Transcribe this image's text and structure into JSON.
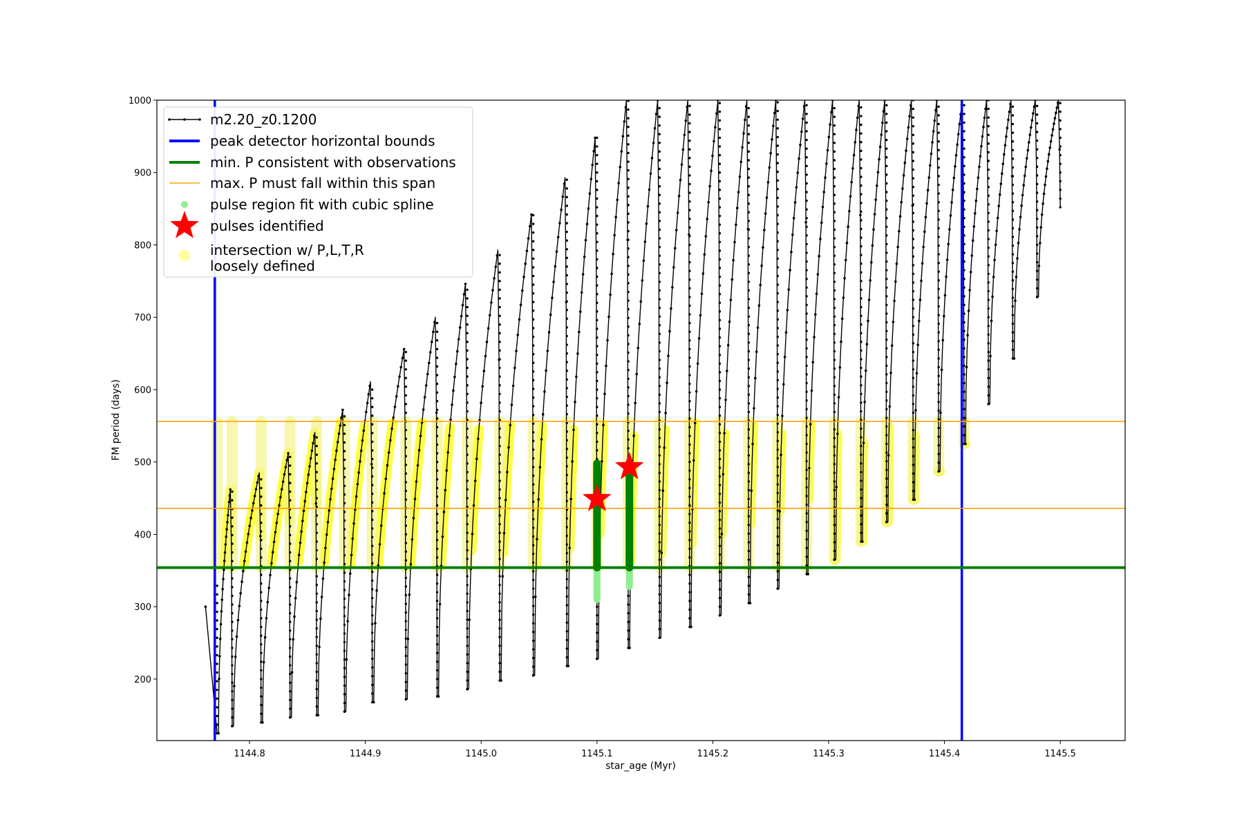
{
  "chart_data": {
    "type": "line",
    "xlabel": "star_age (Myr)",
    "ylabel": "FM period (days)",
    "xlim": [
      1144.72,
      1145.556
    ],
    "ylim": [
      115,
      1000
    ],
    "xticks": [
      1144.8,
      1144.9,
      1145.0,
      1145.1,
      1145.2,
      1145.3,
      1145.4,
      1145.5
    ],
    "xtick_labels": [
      "1144.8",
      "1144.9",
      "1145.0",
      "1145.1",
      "1145.2",
      "1145.3",
      "1145.4",
      "1145.5"
    ],
    "yticks": [
      200,
      300,
      400,
      500,
      600,
      700,
      800,
      900,
      1000
    ],
    "ytick_labels": [
      "200",
      "300",
      "400",
      "500",
      "600",
      "700",
      "800",
      "900",
      "1000"
    ],
    "grid": false,
    "legend_position": "top-left",
    "colors": {
      "track": "#000000",
      "bounds": "#0000ff",
      "min_p": "#008000",
      "max_p_span": "#ffa500",
      "spline": "#90ee90",
      "pulses": "#ff0000",
      "intersection": "#ffff00"
    },
    "legend": [
      {
        "label": "m2.20_z0.1200",
        "marker": "line-dots",
        "color": "#000000"
      },
      {
        "label": "peak detector horizontal bounds",
        "marker": "line",
        "color": "#0000ff"
      },
      {
        "label": "min. P consistent with observations",
        "marker": "line",
        "color": "#008000"
      },
      {
        "label": "max. P must fall within this span",
        "marker": "thin-line",
        "color": "#ffa500"
      },
      {
        "label": "pulse region fit with cubic spline",
        "marker": "dot",
        "color": "#90ee90"
      },
      {
        "label": "pulses identified",
        "marker": "star",
        "color": "#ff0000"
      },
      {
        "label": "intersection w/ P,L,T,R\nloosely defined",
        "marker": "big-dot",
        "color": "#ffff99"
      }
    ],
    "vertical_bounds_x": [
      1144.77,
      1145.415
    ],
    "min_period_y": 354,
    "max_period_span_y": [
      436,
      556
    ],
    "track_start": {
      "age": 1144.762,
      "period": 300
    },
    "pulses": [
      {
        "age": 1144.772,
        "peak": 335,
        "trough": 125
      },
      {
        "age": 1144.785,
        "peak": 462,
        "trough": 135
      },
      {
        "age": 1144.81,
        "peak": 485,
        "trough": 140
      },
      {
        "age": 1144.835,
        "peak": 512,
        "trough": 147
      },
      {
        "age": 1144.858,
        "peak": 541,
        "trough": 150
      },
      {
        "age": 1144.882,
        "peak": 572,
        "trough": 155
      },
      {
        "age": 1144.906,
        "peak": 611,
        "trough": 168
      },
      {
        "age": 1144.935,
        "peak": 656,
        "trough": 172
      },
      {
        "age": 1144.962,
        "peak": 700,
        "trough": 176
      },
      {
        "age": 1144.988,
        "peak": 746,
        "trough": 186
      },
      {
        "age": 1145.016,
        "peak": 793,
        "trough": 198
      },
      {
        "age": 1145.045,
        "peak": 842,
        "trough": 205
      },
      {
        "age": 1145.074,
        "peak": 893,
        "trough": 218
      },
      {
        "age": 1145.1,
        "peak": 948,
        "trough": 228
      },
      {
        "age": 1145.127,
        "peak": 1000,
        "trough": 243
      },
      {
        "age": 1145.154,
        "peak": 1000,
        "trough": 257
      },
      {
        "age": 1145.18,
        "peak": 1000,
        "trough": 272
      },
      {
        "age": 1145.206,
        "peak": 1000,
        "trough": 288
      },
      {
        "age": 1145.231,
        "peak": 1000,
        "trough": 305
      },
      {
        "age": 1145.256,
        "peak": 1000,
        "trough": 325
      },
      {
        "age": 1145.281,
        "peak": 1000,
        "trough": 345
      },
      {
        "age": 1145.305,
        "peak": 1000,
        "trough": 365
      },
      {
        "age": 1145.328,
        "peak": 1000,
        "trough": 390
      },
      {
        "age": 1145.35,
        "peak": 1000,
        "trough": 417
      },
      {
        "age": 1145.373,
        "peak": 1000,
        "trough": 448
      },
      {
        "age": 1145.395,
        "peak": 1000,
        "trough": 487
      },
      {
        "age": 1145.417,
        "peak": 1000,
        "trough": 525
      },
      {
        "age": 1145.438,
        "peak": 1000,
        "trough": 580
      },
      {
        "age": 1145.459,
        "peak": 1000,
        "trough": 643
      },
      {
        "age": 1145.48,
        "peak": 1000,
        "trough": 728
      },
      {
        "age": 1145.5,
        "peak": 1000,
        "trough": 852
      }
    ],
    "pulses_identified": [
      {
        "age": 1145.1,
        "period": 449
      },
      {
        "age": 1145.128,
        "period": 493
      }
    ],
    "spline_fit_regions": [
      {
        "age": 1145.1,
        "range": [
          310,
          498
        ]
      },
      {
        "age": 1145.128,
        "range": [
          328,
          498
        ]
      }
    ]
  }
}
